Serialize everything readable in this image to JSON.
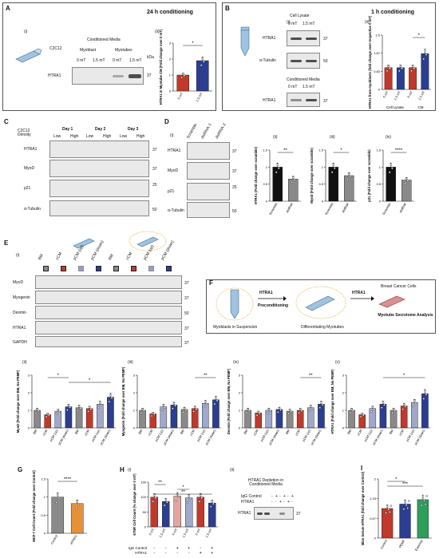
{
  "panelA": {
    "label": "A",
    "title": "24 h conditioning",
    "sub_i": "(i)",
    "sub_ii": "(ii)",
    "cell": "C2C12",
    "media_header": "Conditioned Media",
    "myoblast": "Myoblast",
    "myotubes": "Myotubes",
    "col_0": "0 mT",
    "col_15": "1.5 mT",
    "row": "HTRA1",
    "kda": "kDa",
    "mw": "37",
    "ylabel": "HTRA1 in Myotube CM (Fold change over 0 mT)",
    "sig": "*"
  },
  "panelB": {
    "label": "B",
    "title": "1 h conditioning",
    "sub_i": "(i)",
    "sub_ii": "(ii)",
    "lysate": "Cell Lysate",
    "cm": "Conditioned Media",
    "col_0": "0 mT",
    "col_15": "1.5 mT",
    "rows": [
      "HTRA1",
      "α-Tubulin",
      "HTRA1"
    ],
    "mws": [
      "37",
      "50",
      "37"
    ],
    "ylabel": "HTRA1 from myoblasts (fold change over respective 0 mT)",
    "group1": "Cell Lysate",
    "group2": "CM",
    "sig": "*"
  },
  "panelC": {
    "label": "C",
    "density_label": "C2C12 Density",
    "days": [
      "Day 1",
      "Day 2",
      "Day 3"
    ],
    "lowhigh": [
      "Low",
      "High",
      "Low",
      "High",
      "Low",
      "High"
    ],
    "rows": [
      "HTRA1",
      "MyoD",
      "p21",
      "α-Tubulin"
    ],
    "mws": [
      "37",
      "37",
      "25",
      "50"
    ]
  },
  "panelD": {
    "label": "D",
    "sub": [
      "(i)",
      "(ii)",
      "(iii)",
      "(iv)"
    ],
    "lanes": [
      "Scramble",
      "dsiRNA-1",
      "dsiRNA-2"
    ],
    "rows": [
      "HTRA1",
      "MyoD",
      "p21",
      "α-Tubulin"
    ],
    "mws": [
      "37",
      "37",
      "25",
      "50"
    ],
    "ylabels": [
      "HTRA1 (Fold change over scramble)",
      "MyoD (Fold change over scramble)",
      "p21 (Fold change over scramble)"
    ],
    "cats": [
      "Scramble",
      "dsiRNA"
    ],
    "sigs": [
      "**",
      "*",
      "****"
    ]
  },
  "panelE": {
    "label": "E",
    "sub": [
      "(i)",
      "(ii)",
      "(iii)",
      "(iv)",
      "(v)"
    ],
    "lanes": [
      "BM",
      "cCM",
      "pCM (up)",
      "pCM (down)",
      "BM",
      "cCM",
      "pCM (up)",
      "pCM (down)"
    ],
    "rows": [
      "MyoD",
      "Myogenin",
      "Desmin",
      "HTRA1",
      "GAPDH"
    ],
    "mws": [
      "37",
      "37",
      "50",
      "37",
      "37"
    ],
    "ylabels": [
      "MyoD (Fold change over BM, No PEMF)",
      "Myogenin (Fold change over BM, No PEMF)",
      "Desmin (Fold change over BM, No PEMF)",
      "HTRA1 (Fold change over BM, No PEMF)"
    ],
    "sigs": [
      "*",
      "*",
      "**",
      "**",
      "*"
    ]
  },
  "panelF": {
    "label": "F",
    "precond": "Preconditioning",
    "htra1_a": "HTRA1",
    "htra1_b": "HTRA1",
    "suspension": "Myoblasts in Suspension",
    "diff": "Differentiating Myotubes",
    "bc": "Breast Cancer Cells",
    "analysis": "Myotube Secretome Analysis"
  },
  "panelG": {
    "label": "G",
    "ylabel": "MCF-7 Cell Count (Fold change over Control)",
    "cats": [
      "Control",
      "HTRA1"
    ],
    "sig": "****"
  },
  "panelH": {
    "label": "H",
    "sub": [
      "(i)",
      "(ii)"
    ],
    "ylabel": "67NR Cell Count (% change over 0 mT)",
    "xcats": [
      "0 mT",
      "1.5 mT",
      "0 mT",
      "1.5 mT",
      "0 mT",
      "1.5 mT"
    ],
    "row_igg": "IgG Control",
    "row_htra1": "HTRA1",
    "igg_signs": [
      "-",
      "-",
      "+",
      "+",
      "-",
      "+"
    ],
    "htra1_signs": [
      "-",
      "-",
      "-",
      "-",
      "+",
      "+"
    ],
    "sigs": [
      "**",
      "*",
      "**"
    ],
    "blot_title": "HTRA1 Depletion in Conditioned Media",
    "blot_igg": "IgG Control",
    "blot_htra1": "HTRA1",
    "blot_igg_signs": [
      "-",
      "+",
      "-",
      "+",
      "-",
      "+"
    ],
    "blot_htra1_signs": [
      "-",
      "-",
      "+",
      "-",
      "+",
      "-"
    ],
    "blot_row": "HTRA1",
    "mw": "37"
  },
  "panelI": {
    "label": "I",
    "ylabel": "Mice Serum HTRA1 (fold change over Control)",
    "cats": [
      "Control",
      "PEMF",
      "Exercise"
    ],
    "sigs": [
      "*",
      "***"
    ]
  },
  "colors": {
    "red": "#c0392b",
    "blue": "#2c3e90",
    "black": "#111111",
    "grey": "#8a8a8a",
    "orange": "#e69138",
    "green": "#2e9e5b",
    "flask": "#9fc3e0"
  },
  "chart_data": [
    {
      "id": "A-ii",
      "type": "bar",
      "categories": [
        "0 mT",
        "1.5 mT"
      ],
      "values": [
        1.0,
        1.9
      ],
      "ylim": [
        0,
        3
      ],
      "colors": [
        "#c0392b",
        "#2c3e90"
      ]
    },
    {
      "id": "B-ii",
      "type": "bar",
      "categories": [
        "0 mT",
        "1.5 mT",
        "0 mT",
        "1.5 mT"
      ],
      "values": [
        1.0,
        1.0,
        1.0,
        1.65
      ],
      "ylim": [
        0,
        2.5
      ],
      "colors": [
        "#c0392b",
        "#2c3e90",
        "#c0392b",
        "#2c3e90"
      ]
    },
    {
      "id": "D-ii",
      "type": "bar",
      "categories": [
        "Scramble",
        "dsiRNA"
      ],
      "values": [
        1.0,
        0.65
      ],
      "ylim": [
        0,
        1.5
      ],
      "colors": [
        "#111111",
        "#8a8a8a"
      ]
    },
    {
      "id": "D-iii",
      "type": "bar",
      "categories": [
        "Scramble",
        "dsiRNA"
      ],
      "values": [
        1.0,
        0.75
      ],
      "ylim": [
        0,
        1.5
      ],
      "colors": [
        "#111111",
        "#8a8a8a"
      ]
    },
    {
      "id": "D-iv",
      "type": "bar",
      "categories": [
        "Scramble",
        "dsiRNA"
      ],
      "values": [
        1.0,
        0.62
      ],
      "ylim": [
        0,
        1.5
      ],
      "colors": [
        "#111111",
        "#8a8a8a"
      ]
    },
    {
      "id": "E-ii",
      "type": "bar",
      "categories": [
        "BM",
        "cCM",
        "pCM (up)",
        "pCM (down)",
        "BM",
        "cCM",
        "pCM (up)",
        "pCM (down)"
      ],
      "values": [
        1.0,
        0.75,
        0.95,
        1.2,
        1.15,
        1.1,
        1.35,
        1.75
      ],
      "ylim": [
        0,
        3
      ]
    },
    {
      "id": "E-iii",
      "type": "bar",
      "categories": [
        "BM",
        "cCM",
        "pCM (up)",
        "pCM (down)",
        "BM",
        "cCM",
        "pCM (up)",
        "pCM (down)"
      ],
      "values": [
        1.0,
        0.8,
        1.2,
        1.3,
        1.05,
        1.1,
        1.4,
        1.6
      ],
      "ylim": [
        0,
        3
      ]
    },
    {
      "id": "E-iv",
      "type": "bar",
      "categories": [
        "BM",
        "cCM",
        "pCM (up)",
        "pCM (down)",
        "BM",
        "cCM",
        "pCM (up)",
        "pCM (down)"
      ],
      "values": [
        1.0,
        0.85,
        1.0,
        1.05,
        0.95,
        1.0,
        1.15,
        1.35
      ],
      "ylim": [
        0,
        3
      ]
    },
    {
      "id": "E-v",
      "type": "bar",
      "categories": [
        "BM",
        "cCM",
        "pCM (up)",
        "pCM (down)",
        "BM",
        "cCM",
        "pCM (up)",
        "pCM (down)"
      ],
      "values": [
        1.0,
        0.75,
        1.1,
        1.35,
        1.0,
        1.25,
        1.45,
        1.95
      ],
      "ylim": [
        0,
        3
      ]
    },
    {
      "id": "G",
      "type": "bar",
      "categories": [
        "Control",
        "HTRA1"
      ],
      "values": [
        1.0,
        0.82
      ],
      "ylim": [
        0,
        1.5
      ],
      "colors": [
        "#8a8a8a",
        "#e69138"
      ]
    },
    {
      "id": "H-i",
      "type": "bar",
      "categories": [
        "0 mT",
        "1.5 mT",
        "0 mT",
        "1.5 mT",
        "0 mT",
        "1.5 mT"
      ],
      "values": [
        100,
        85,
        103,
        97,
        100,
        80
      ],
      "ylim": [
        0,
        150
      ]
    },
    {
      "id": "I",
      "type": "bar",
      "categories": [
        "Control",
        "PEMF",
        "Exercise"
      ],
      "values": [
        1.0,
        1.15,
        1.3
      ],
      "ylim": [
        0,
        2.0
      ],
      "colors": [
        "#c0392b",
        "#2c3e90",
        "#2e9e5b"
      ]
    }
  ]
}
